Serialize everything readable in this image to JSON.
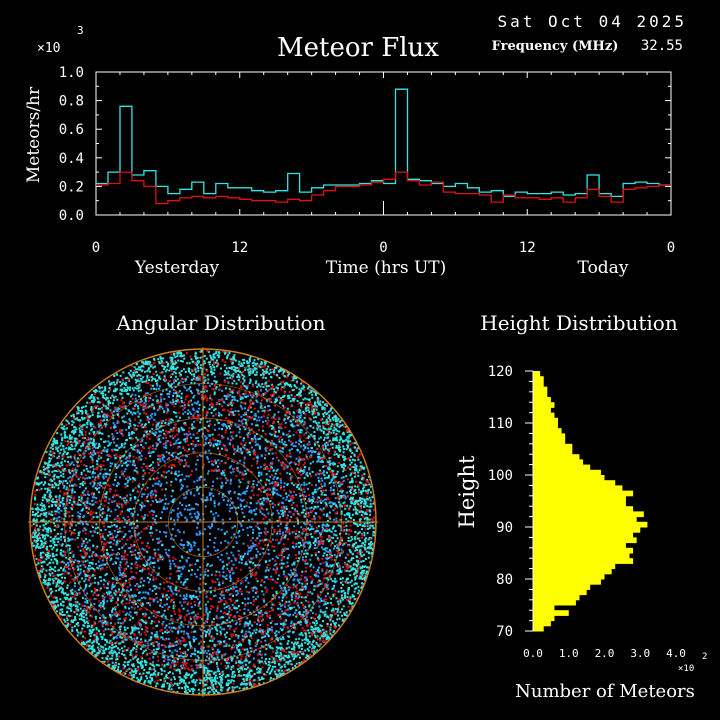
{
  "header": {
    "date": "Sat Oct 04 2025",
    "title": "Meteor Flux",
    "frequency_label": "Frequency (MHz)",
    "frequency_value": "32.55",
    "exponent_base": "×10",
    "exponent_power": "3"
  },
  "colors": {
    "background": "#000000",
    "today": "#33e6e6",
    "yesterday": "#e01010",
    "histogram": "#ffff00",
    "axes": "#ffffff",
    "grid": "#d08020"
  },
  "chart_data": [
    {
      "type": "line",
      "title": "Meteor Flux",
      "ylabel": "Meteors/hr",
      "xlabel": "Time (hrs UT)",
      "y_multiplier": "×10^3",
      "ylim": [
        0,
        1.0
      ],
      "y_ticks": [
        "0.0",
        "0.2",
        "0.4",
        "0.6",
        "0.8",
        "1.0"
      ],
      "y_tick_values": [
        0,
        0.2,
        0.4,
        0.6,
        0.8,
        1.0
      ],
      "x_ticks": [
        "0",
        "12",
        "0",
        "12",
        "0"
      ],
      "x_tick_hours": [
        0,
        12,
        24,
        36,
        48
      ],
      "x_range_hours": [
        0,
        48
      ],
      "day_labels": [
        "Yesterday",
        "Time (hrs UT)",
        "Today"
      ],
      "step": "hourly",
      "series": [
        {
          "name": "cyan",
          "color": "#33e6e6",
          "values": [
            0.22,
            0.3,
            0.76,
            0.28,
            0.31,
            0.2,
            0.15,
            0.18,
            0.23,
            0.15,
            0.22,
            0.19,
            0.19,
            0.17,
            0.16,
            0.17,
            0.29,
            0.16,
            0.19,
            0.21,
            0.21,
            0.21,
            0.22,
            0.24,
            0.22,
            0.88,
            0.25,
            0.24,
            0.22,
            0.2,
            0.22,
            0.19,
            0.16,
            0.17,
            0.13,
            0.16,
            0.15,
            0.15,
            0.16,
            0.14,
            0.15,
            0.28,
            0.15,
            0.13,
            0.22,
            0.23,
            0.22,
            0.21
          ]
        },
        {
          "name": "red",
          "color": "#e01010",
          "values": [
            0.21,
            0.22,
            0.3,
            0.24,
            0.2,
            0.08,
            0.1,
            0.12,
            0.13,
            0.12,
            0.13,
            0.12,
            0.11,
            0.1,
            0.1,
            0.09,
            0.11,
            0.1,
            0.14,
            0.17,
            0.2,
            0.2,
            0.21,
            0.23,
            0.25,
            0.3,
            0.24,
            0.21,
            0.23,
            0.16,
            0.15,
            0.15,
            0.14,
            0.09,
            0.14,
            0.12,
            0.12,
            0.11,
            0.12,
            0.09,
            0.12,
            0.18,
            0.13,
            0.09,
            0.18,
            0.19,
            0.2,
            0.21
          ]
        }
      ]
    },
    {
      "type": "scatter",
      "title": "Angular Distribution",
      "projection": "polar sky map",
      "series": [
        {
          "name": "cyan",
          "color": "#33e6e6"
        },
        {
          "name": "blue",
          "color": "#3399ff"
        },
        {
          "name": "red",
          "color": "#e01010"
        }
      ],
      "grid": true
    },
    {
      "type": "bar",
      "orientation": "horizontal",
      "title": "Height Distribution",
      "ylabel": "Height",
      "xlabel": "Number of Meteors",
      "x_multiplier": "×10^2",
      "xlim": [
        0,
        4.0
      ],
      "x_ticks": [
        "0.0",
        "1.0",
        "2.0",
        "3.0",
        "4.0"
      ],
      "ylim": [
        70,
        120
      ],
      "y_ticks": [
        "70",
        "80",
        "90",
        "100",
        "110",
        "120"
      ],
      "bin_width": 1,
      "heights": [
        70,
        71,
        72,
        73,
        74,
        75,
        76,
        77,
        78,
        79,
        80,
        81,
        82,
        83,
        84,
        85,
        86,
        87,
        88,
        89,
        90,
        91,
        92,
        93,
        94,
        95,
        96,
        97,
        98,
        99,
        100,
        101,
        102,
        103,
        104,
        105,
        106,
        107,
        108,
        109,
        110,
        111,
        112,
        113,
        114,
        115,
        116,
        117,
        118,
        119
      ],
      "values": [
        0.3,
        0.5,
        0.6,
        1.0,
        0.6,
        1.2,
        1.3,
        1.5,
        1.6,
        1.9,
        2.0,
        2.2,
        2.3,
        2.8,
        2.7,
        2.8,
        2.6,
        2.9,
        2.8,
        3.0,
        3.2,
        2.9,
        3.1,
        2.8,
        2.6,
        2.6,
        2.8,
        2.5,
        2.3,
        2.0,
        1.9,
        1.6,
        1.4,
        1.3,
        1.1,
        1.1,
        0.9,
        0.9,
        0.8,
        0.7,
        0.7,
        0.6,
        0.5,
        0.6,
        0.5,
        0.4,
        0.4,
        0.3,
        0.3,
        0.2
      ]
    }
  ]
}
